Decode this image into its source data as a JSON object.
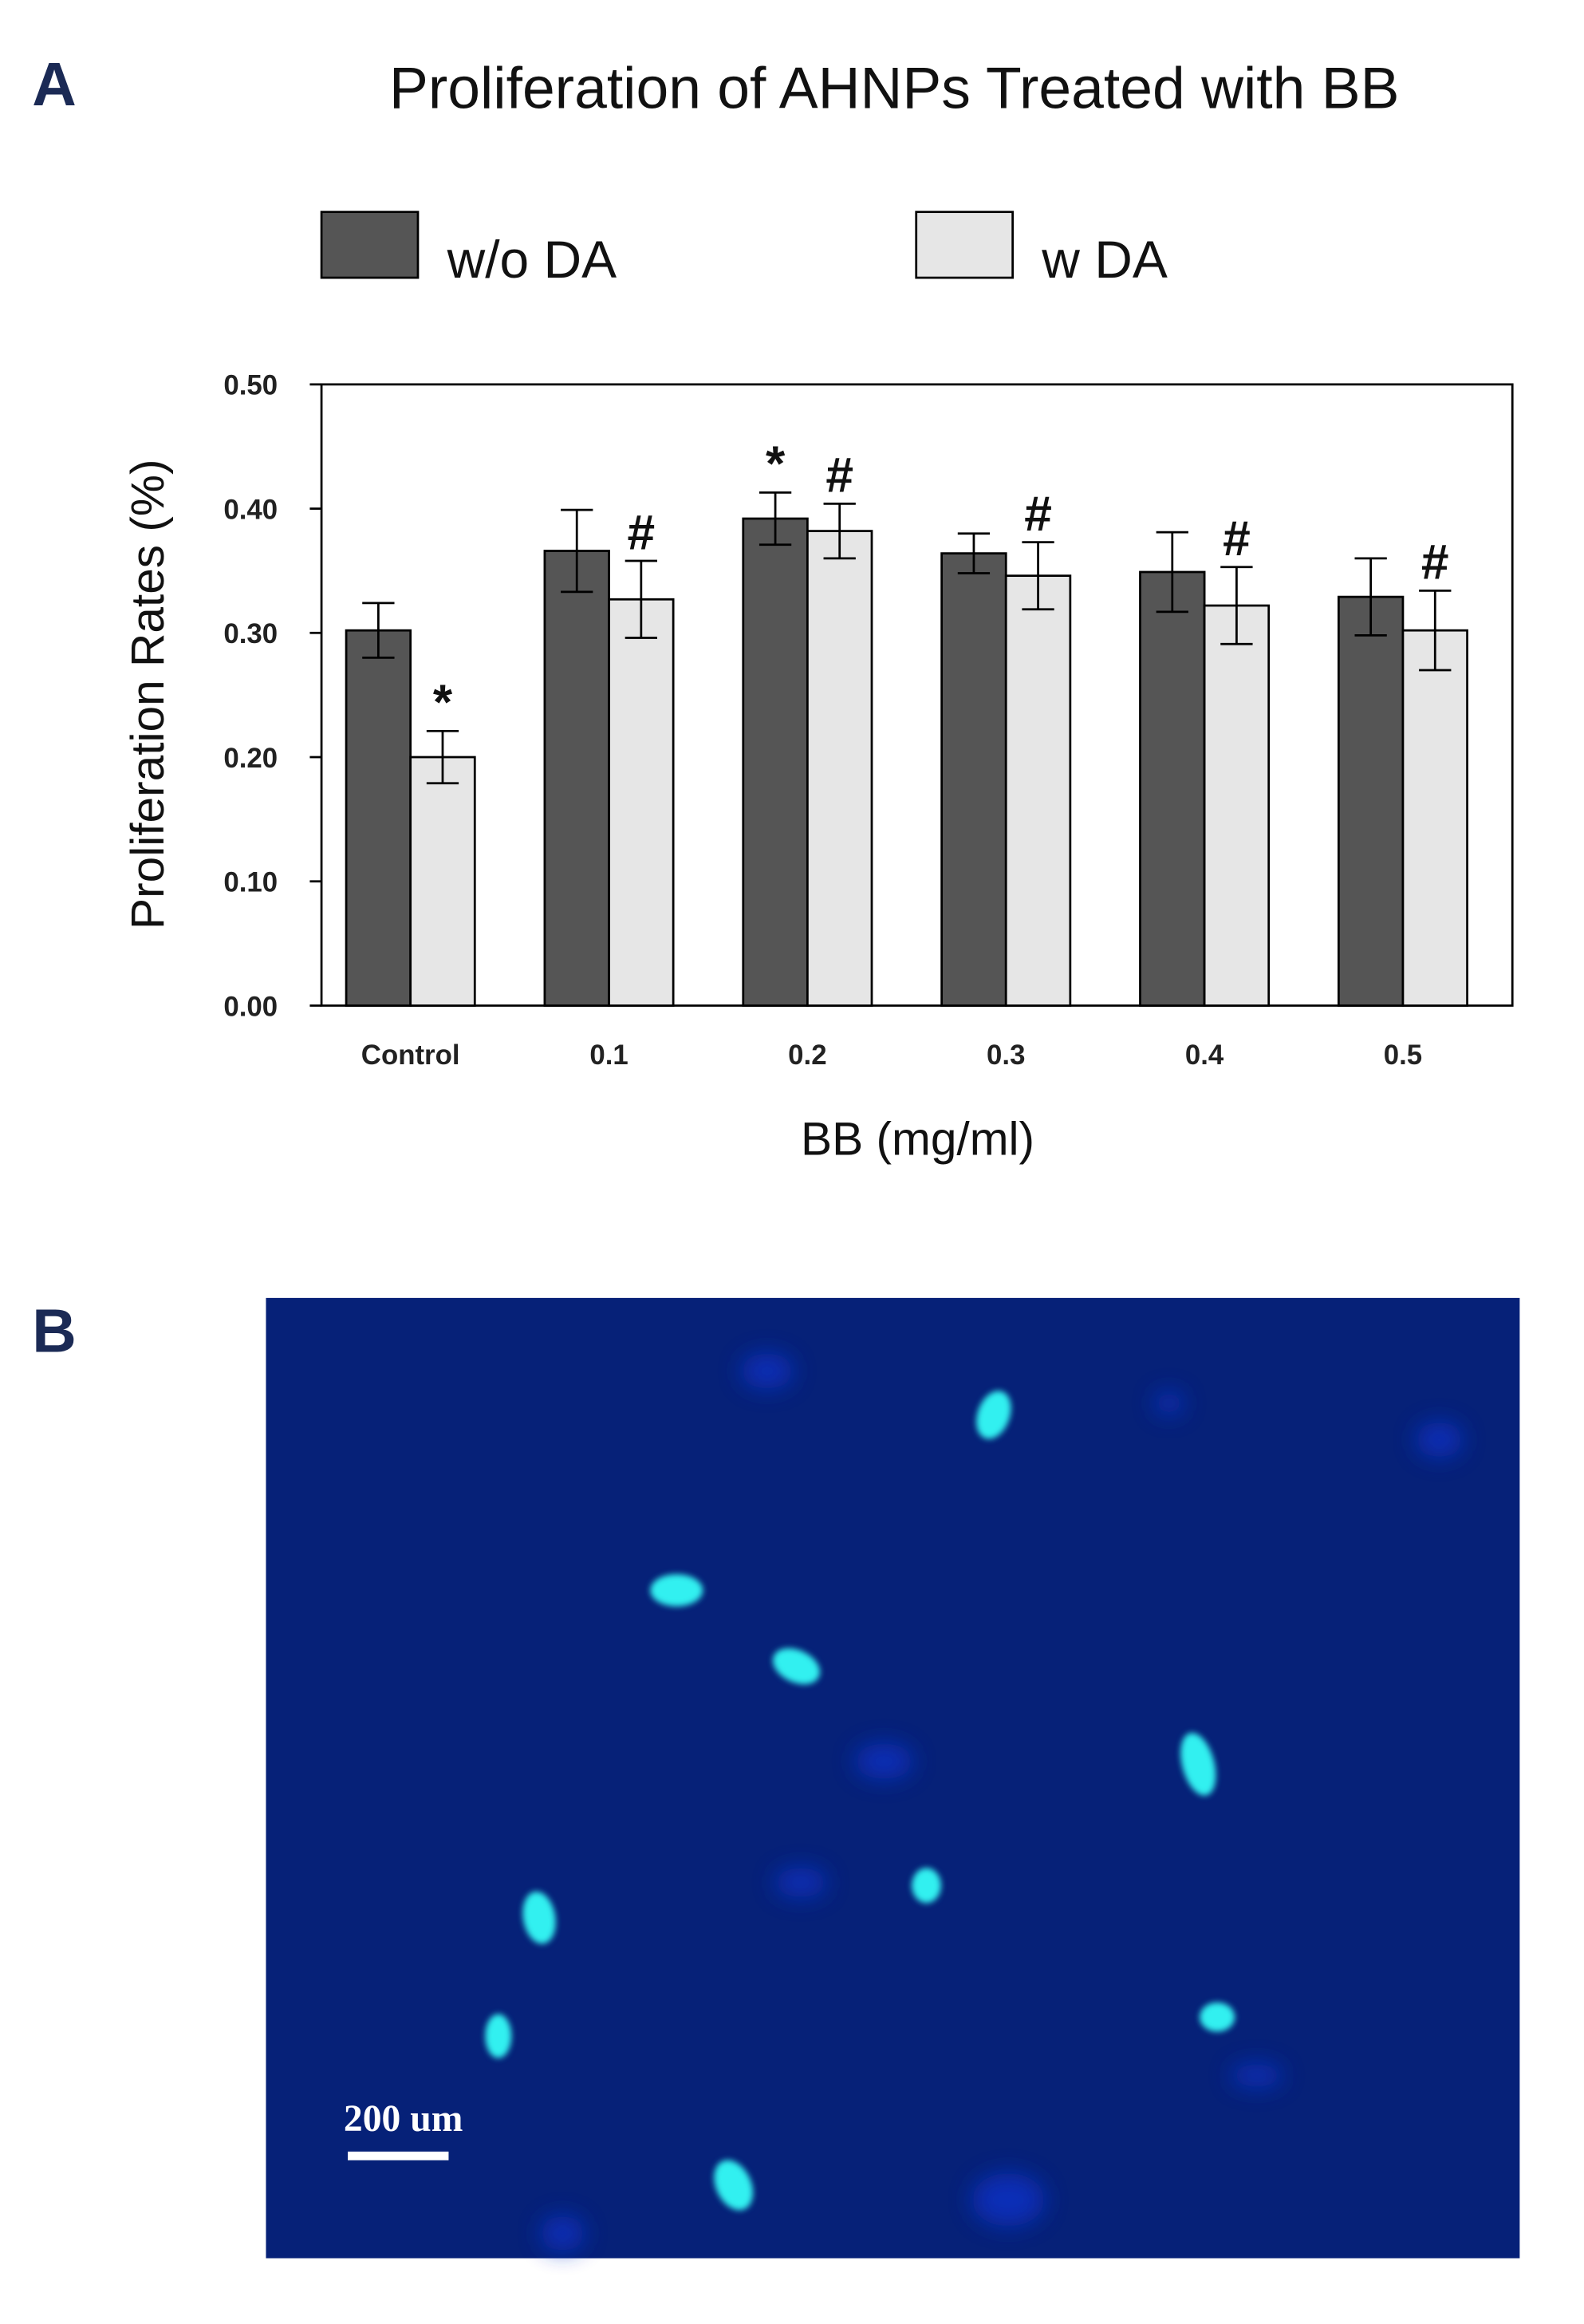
{
  "chart_data": {
    "type": "bar",
    "title": "Proliferation of AHNPs Treated with BB",
    "x_label": "BB (mg/ml)",
    "y_label": "Proliferation Rates (%)",
    "categories": [
      "Control",
      "0.1",
      "0.2",
      "0.3",
      "0.4",
      "0.5"
    ],
    "series": [
      {
        "name": "w/o DA",
        "color": "#555555",
        "values": [
          0.302,
          0.366,
          0.392,
          0.364,
          0.349,
          0.329
        ],
        "errors": [
          0.022,
          0.033,
          0.021,
          0.016,
          0.032,
          0.031
        ],
        "annotations": [
          null,
          null,
          "*",
          null,
          null,
          null
        ]
      },
      {
        "name": "w DA",
        "color": "#e6e6e6",
        "values": [
          0.2,
          0.327,
          0.382,
          0.346,
          0.322,
          0.302
        ],
        "errors": [
          0.021,
          0.031,
          0.022,
          0.027,
          0.031,
          0.032
        ],
        "annotations": [
          "*",
          "#",
          "#",
          "#",
          "#",
          "#"
        ]
      }
    ],
    "ylim": [
      0,
      0.5
    ],
    "yticks": [
      {
        "value": 0,
        "label": "0.00"
      },
      {
        "value": 0.1,
        "label": "0.10"
      },
      {
        "value": 0.2,
        "label": "0.20"
      },
      {
        "value": 0.3,
        "label": "0.30"
      },
      {
        "value": 0.4,
        "label": "0.40"
      },
      {
        "value": 0.5,
        "label": "0.50"
      }
    ],
    "grid": false,
    "legend": "top"
  },
  "panel_labels": [
    "A",
    "B"
  ],
  "image": {
    "scale_label": "200 um"
  }
}
